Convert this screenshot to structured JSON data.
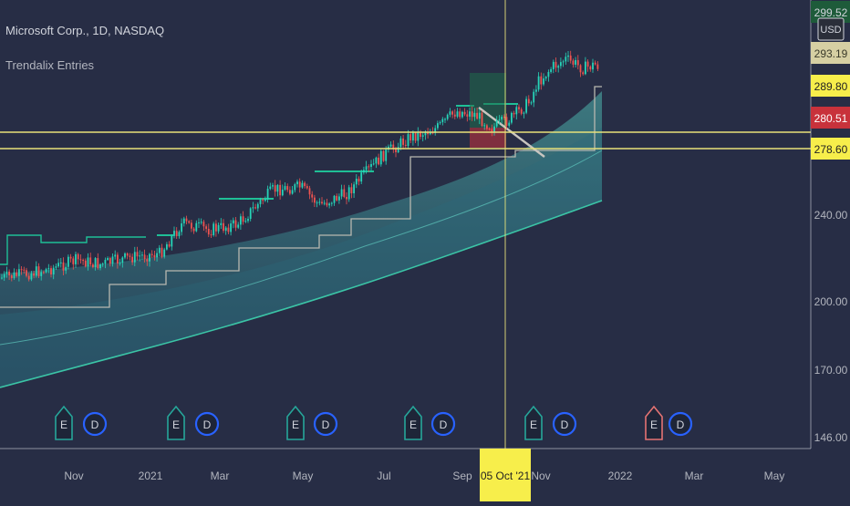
{
  "header": {
    "symbol_title": "Microsoft Corp., 1D, NASDAQ",
    "indicator_name": "Trendalix Entries"
  },
  "price_axis": {
    "currency": "USD",
    "ticks": [
      "240.00",
      "200.00",
      "170.00",
      "146.00"
    ]
  },
  "price_badges": [
    {
      "text": "299.52",
      "color": "#1e5b3a",
      "text_color": "#d1d4dc"
    },
    {
      "text": "293.19",
      "color": "#d6cfa3",
      "text_color": "#3a3a2a"
    },
    {
      "text": "289.80",
      "color": "#f7ee4b",
      "text_color": "#222222"
    },
    {
      "text": "280.51",
      "color": "#c8323b",
      "text_color": "#ffffff"
    },
    {
      "text": "278.60",
      "color": "#f7ee4b",
      "text_color": "#222222"
    }
  ],
  "time_axis": {
    "labels": [
      "Nov",
      "2021",
      "Mar",
      "May",
      "Jul",
      "Sep",
      "Nov",
      "2022",
      "Mar",
      "May"
    ],
    "crosshair_label": "05 Oct '21"
  },
  "events": [
    {
      "letter": "E",
      "kind": "earnings"
    },
    {
      "letter": "D",
      "kind": "dividend"
    },
    {
      "letter": "E",
      "kind": "earnings"
    },
    {
      "letter": "D",
      "kind": "dividend"
    },
    {
      "letter": "E",
      "kind": "earnings"
    },
    {
      "letter": "D",
      "kind": "dividend"
    },
    {
      "letter": "E",
      "kind": "earnings"
    },
    {
      "letter": "D",
      "kind": "dividend"
    },
    {
      "letter": "E",
      "kind": "earnings"
    },
    {
      "letter": "D",
      "kind": "dividend"
    },
    {
      "letter": "E",
      "kind": "earnings-future"
    },
    {
      "letter": "D",
      "kind": "dividend"
    }
  ],
  "colors": {
    "background": "#272d45",
    "up_candle": "#26d4b8",
    "down_candle": "#ef5350",
    "ribbon": "#3aa3a0",
    "support_line": "#b8b8b0",
    "resistance_line": "#1fbf96",
    "horizontal_level": "#e8e27a",
    "earnings": "#26a69a",
    "dividend": "#2962ff"
  },
  "chart_data": {
    "type": "line",
    "title": "Microsoft Corp., 1D, NASDAQ",
    "x_range": [
      "2020-10-05",
      "2022-05-25"
    ],
    "y_scale": "log",
    "y_range": [
      143,
      306
    ],
    "series": [
      {
        "kind": "close",
        "x": [
          "2020-10-05",
          "2020-11-01",
          "2020-12-01",
          "2021-01-01",
          "2021-02-01",
          "2021-03-01",
          "2021-04-01",
          "2021-05-01",
          "2021-06-01",
          "2021-07-01",
          "2021-08-01",
          "2021-09-01",
          "2021-10-05",
          "2021-11-01",
          "2021-12-01",
          "2021-12-10"
        ],
        "values": [
          205,
          212,
          215,
          222,
          232,
          238,
          242,
          250,
          255,
          272,
          285,
          292,
          289,
          300,
          295,
          293
        ]
      },
      {
        "kind": "ribbon_upper",
        "x": [
          "2020-10-05",
          "2021-01-01",
          "2021-04-01",
          "2021-07-01",
          "2021-10-05",
          "2021-12-10"
        ],
        "values": [
          200,
          210,
          220,
          240,
          262,
          285
        ]
      },
      {
        "kind": "ribbon_lower",
        "x": [
          "2020-10-05",
          "2021-01-01",
          "2021-04-01",
          "2021-07-01",
          "2021-10-05",
          "2021-12-10"
        ],
        "values": [
          165,
          175,
          188,
          205,
          225,
          240
        ]
      }
    ],
    "horizontal_levels": [
      280.51,
      278.6
    ],
    "crosshair_x": "2021-10-05"
  }
}
